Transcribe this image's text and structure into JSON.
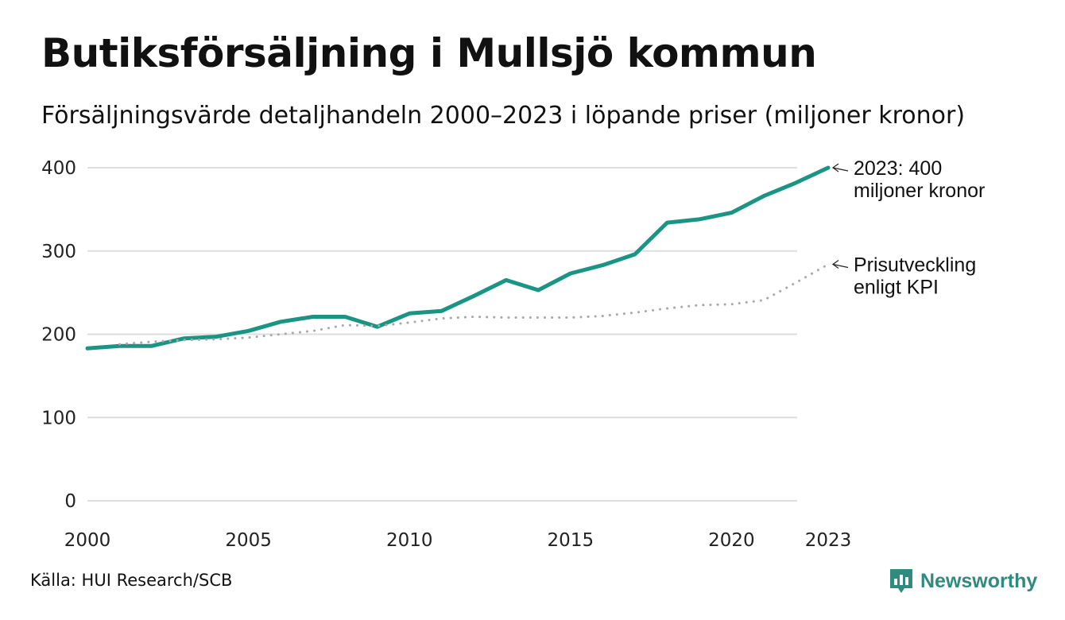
{
  "header": {
    "title": "Butiksförsäljning i Mullsjö kommun",
    "subtitle": "Försäljningsvärde detaljhandeln 2000–2023 i löpande priser (miljoner kronor)"
  },
  "footer": {
    "source": "Källa: HUI Research/SCB",
    "brand": "Newsworthy"
  },
  "colors": {
    "sales_line": "#1a9483",
    "cpi_line": "#a8a8a8",
    "grid": "#dddddd",
    "brand": "#2e8b7e"
  },
  "chart_data": {
    "type": "line",
    "title": "Butiksförsäljning i Mullsjö kommun",
    "subtitle": "Försäljningsvärde detaljhandeln 2000–2023 i löpande priser (miljoner kronor)",
    "xlabel": "",
    "ylabel": "",
    "xlim": [
      2000,
      2023
    ],
    "ylim": [
      0,
      400
    ],
    "x_ticks": [
      2000,
      2005,
      2010,
      2015,
      2020,
      2023
    ],
    "y_ticks": [
      0,
      100,
      200,
      300,
      400
    ],
    "grid": "horizontal",
    "series": [
      {
        "name": "Försäljningsvärde",
        "style": "solid",
        "x": [
          2000,
          2001,
          2002,
          2003,
          2004,
          2005,
          2006,
          2007,
          2008,
          2009,
          2010,
          2011,
          2012,
          2013,
          2014,
          2015,
          2016,
          2017,
          2018,
          2019,
          2020,
          2021,
          2022,
          2023
        ],
        "values": [
          183,
          186,
          186,
          195,
          197,
          204,
          215,
          221,
          221,
          209,
          225,
          228,
          246,
          265,
          253,
          273,
          283,
          296,
          334,
          338,
          346,
          366,
          382,
          400
        ]
      },
      {
        "name": "Prisutveckling enligt KPI",
        "style": "dotted",
        "x": [
          2001,
          2002,
          2003,
          2004,
          2005,
          2006,
          2007,
          2008,
          2009,
          2010,
          2011,
          2012,
          2013,
          2014,
          2015,
          2016,
          2017,
          2018,
          2019,
          2020,
          2021,
          2022,
          2023
        ],
        "values": [
          188,
          191,
          193,
          194,
          196,
          200,
          204,
          211,
          210,
          214,
          219,
          221,
          220,
          220,
          220,
          222,
          226,
          231,
          235,
          236,
          241,
          262,
          284
        ]
      }
    ],
    "annotations": [
      {
        "series": 0,
        "line1": "2023: 400",
        "line2": "miljoner kronor"
      },
      {
        "series": 1,
        "line1": "Prisutveckling",
        "line2": "enligt KPI"
      }
    ]
  }
}
